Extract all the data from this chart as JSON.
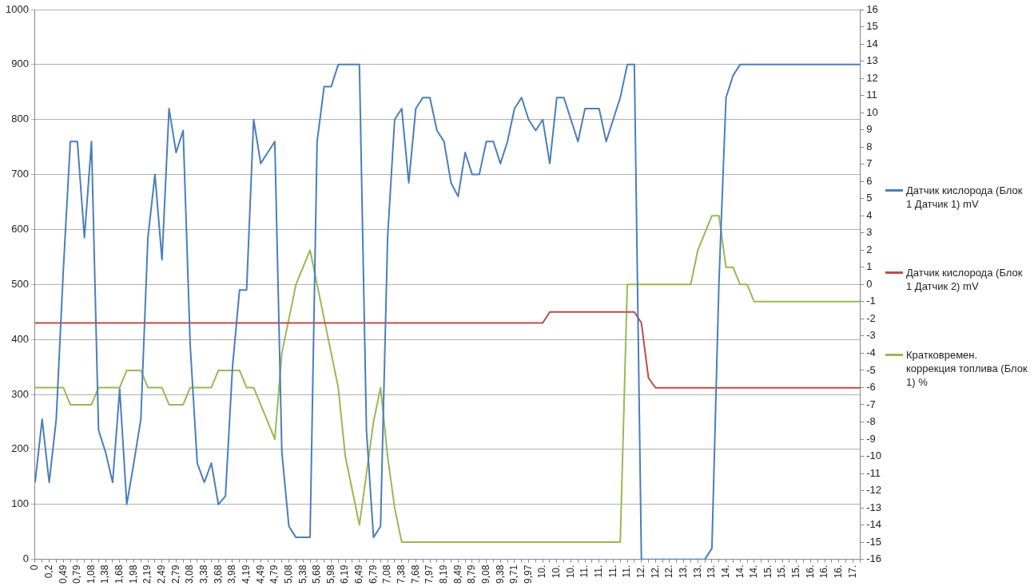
{
  "chart_data": {
    "type": "line",
    "categories": [
      "0",
      null,
      "0,2",
      null,
      "0,49",
      null,
      "0,79",
      null,
      "1,08",
      null,
      "1,38",
      null,
      "1,68",
      null,
      "1,98",
      null,
      "2,19",
      null,
      "2,49",
      null,
      "2,79",
      null,
      "3,08",
      null,
      "3,38",
      null,
      "3,68",
      null,
      "3,98",
      null,
      "4,19",
      null,
      "4,49",
      null,
      "4,79",
      null,
      "5,08",
      null,
      "5,38",
      null,
      "5,68",
      null,
      "5,98",
      null,
      "6,19",
      null,
      "6,49",
      null,
      "6,79",
      null,
      "7,08",
      null,
      "7,38",
      null,
      "7,68",
      null,
      "7,97",
      null,
      "8,19",
      null,
      "8,49",
      null,
      "8,79",
      null,
      "9,08",
      null,
      "9,38",
      null,
      "9,71",
      null,
      "9,97",
      null,
      "10.",
      null,
      "10.",
      null,
      "10.",
      null,
      "11.",
      null,
      "11.",
      null,
      "11.",
      null,
      "11.",
      null,
      "12.",
      null,
      "12.",
      null,
      "12.",
      null,
      "13.",
      null,
      "13.",
      null,
      "13.",
      null,
      "14.",
      null,
      "14.",
      null,
      "14.",
      null,
      "15.",
      null,
      "15.",
      null,
      "15.",
      null,
      "16.",
      null,
      "16.",
      null,
      "16.",
      null,
      "17.",
      null
    ],
    "series": [
      {
        "name": "Датчик кислорода (Блок 1 Датчик 1) mV",
        "color": "#4a7ebb",
        "axis": "y",
        "values": [
          140,
          255,
          140,
          255,
          525,
          760,
          760,
          585,
          760,
          235,
          195,
          140,
          310,
          100,
          175,
          255,
          585,
          700,
          545,
          820,
          740,
          780,
          390,
          175,
          140,
          175,
          100,
          115,
          350,
          490,
          490,
          800,
          720,
          740,
          760,
          195,
          60,
          40,
          40,
          40,
          760,
          860,
          860,
          900,
          900,
          900,
          900,
          235,
          40,
          60,
          585,
          800,
          820,
          685,
          820,
          840,
          840,
          780,
          760,
          685,
          660,
          740,
          700,
          700,
          760,
          760,
          720,
          760,
          820,
          840,
          800,
          780,
          800,
          720,
          840,
          840,
          800,
          760,
          820,
          820,
          820,
          760,
          800,
          840,
          900,
          900,
          0,
          0,
          0,
          0,
          0,
          0,
          0,
          0,
          0,
          0,
          20,
          505,
          840,
          880,
          900,
          900,
          900,
          900,
          900,
          900,
          900,
          900,
          900,
          900,
          900,
          900,
          900,
          900,
          900,
          900,
          900,
          900
        ]
      },
      {
        "name": "Датчик кислорода (Блок 1 Датчик 2) mV",
        "color": "#be4b48",
        "axis": "y",
        "values": [
          430,
          430,
          430,
          430,
          430,
          430,
          430,
          430,
          430,
          430,
          430,
          430,
          430,
          430,
          430,
          430,
          430,
          430,
          430,
          430,
          430,
          430,
          430,
          430,
          430,
          430,
          430,
          430,
          430,
          430,
          430,
          430,
          430,
          430,
          430,
          430,
          430,
          430,
          430,
          430,
          430,
          430,
          430,
          430,
          430,
          430,
          430,
          430,
          430,
          430,
          430,
          430,
          430,
          430,
          430,
          430,
          430,
          430,
          430,
          430,
          430,
          430,
          430,
          430,
          430,
          430,
          430,
          430,
          430,
          430,
          430,
          430,
          430,
          450,
          450,
          450,
          450,
          450,
          450,
          450,
          450,
          450,
          450,
          450,
          450,
          450,
          430,
          330,
          312,
          312,
          312,
          312,
          312,
          312,
          312,
          312,
          312,
          312,
          312,
          312,
          312,
          312,
          312,
          312,
          312,
          312,
          312,
          312,
          312,
          312,
          312,
          312,
          312,
          312,
          312,
          312,
          312,
          312
        ]
      },
      {
        "name": "Кратковремен. коррекция топлива (Блок 1) %",
        "color": "#98b954",
        "axis": "y2",
        "values": [
          -6,
          -6,
          -6,
          -6,
          -6,
          -7,
          -7,
          -7,
          -7,
          -6,
          -6,
          -6,
          -6,
          -5,
          -5,
          -5,
          -6,
          -6,
          -6,
          -7,
          -7,
          -7,
          -6,
          -6,
          -6,
          -6,
          -5,
          -5,
          -5,
          -5,
          -6,
          -6,
          -7,
          -8,
          -9,
          -4,
          -2,
          0,
          1,
          2,
          0,
          -2,
          -4,
          -6,
          -10,
          -12,
          -14,
          -11,
          -8,
          -6,
          -10,
          -13,
          -15,
          -15,
          -15,
          -15,
          -15,
          -15,
          -15,
          -15,
          -15,
          -15,
          -15,
          -15,
          -15,
          -15,
          -15,
          -15,
          -15,
          -15,
          -15,
          -15,
          -15,
          -15,
          -15,
          -15,
          -15,
          -15,
          -15,
          -15,
          -15,
          -15,
          -15,
          -15,
          0,
          0,
          0,
          0,
          0,
          0,
          0,
          0,
          0,
          0,
          2,
          3,
          4,
          4,
          1,
          1,
          0,
          0,
          -1,
          -1,
          -1,
          -1,
          -1,
          -1,
          -1,
          -1,
          -1,
          -1,
          -1,
          -1,
          -1,
          -1,
          -1,
          -1
        ]
      }
    ],
    "ylim": [
      0,
      1000
    ],
    "yticks": [
      0,
      100,
      200,
      300,
      400,
      500,
      600,
      700,
      800,
      900,
      1000
    ],
    "y2lim": [
      -16,
      16
    ],
    "y2ticks": [
      -16,
      -15,
      -14,
      -13,
      -12,
      -11,
      -10,
      -9,
      -8,
      -7,
      -6,
      -5,
      -4,
      -3,
      -2,
      -1,
      0,
      1,
      2,
      3,
      4,
      5,
      6,
      7,
      8,
      9,
      10,
      11,
      12,
      13,
      14,
      15,
      16
    ],
    "grid": "y",
    "legend": "right",
    "marker": "none",
    "line_style": "solid"
  }
}
